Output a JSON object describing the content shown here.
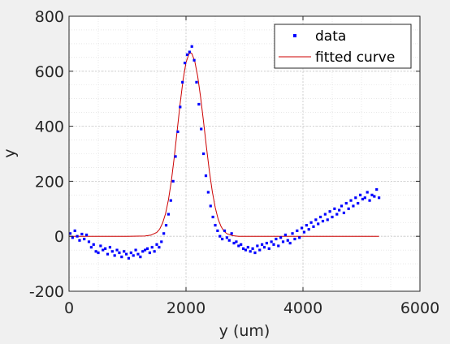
{
  "chart_data": {
    "type": "scatter",
    "xlabel": "y (um)",
    "ylabel": "y",
    "xlim": [
      0,
      6000
    ],
    "ylim": [
      -200,
      800
    ],
    "xticks": [
      0,
      2000,
      4000,
      6000
    ],
    "xtick_labels": [
      "0",
      "2000",
      "4000",
      "6000"
    ],
    "yticks": [
      -200,
      0,
      200,
      400,
      600,
      800
    ],
    "ytick_labels": [
      "-200",
      "0",
      "200",
      "400",
      "600",
      "800"
    ],
    "grid": true,
    "minor_grid": true,
    "legend_position": "top-right",
    "series": [
      {
        "name": "data",
        "kind": "markers",
        "color": "#0000ff",
        "x": [
          20,
          60,
          100,
          140,
          180,
          220,
          260,
          300,
          340,
          380,
          420,
          460,
          500,
          540,
          580,
          620,
          660,
          700,
          740,
          780,
          820,
          860,
          900,
          940,
          980,
          1020,
          1060,
          1100,
          1140,
          1180,
          1220,
          1260,
          1300,
          1340,
          1380,
          1420,
          1460,
          1500,
          1540,
          1580,
          1620,
          1660,
          1700,
          1740,
          1780,
          1820,
          1860,
          1900,
          1940,
          1980,
          2020,
          2060,
          2100,
          2140,
          2180,
          2220,
          2260,
          2300,
          2340,
          2380,
          2420,
          2460,
          2500,
          2540,
          2580,
          2620,
          2660,
          2700,
          2740,
          2780,
          2820,
          2860,
          2900,
          2940,
          2980,
          3020,
          3060,
          3100,
          3140,
          3180,
          3220,
          3260,
          3300,
          3340,
          3380,
          3420,
          3460,
          3500,
          3540,
          3580,
          3620,
          3660,
          3700,
          3740,
          3780,
          3820,
          3860,
          3900,
          3940,
          3980,
          4020,
          4060,
          4100,
          4140,
          4180,
          4220,
          4260,
          4300,
          4340,
          4380,
          4420,
          4460,
          4500,
          4540,
          4580,
          4620,
          4660,
          4700,
          4740,
          4780,
          4820,
          4860,
          4900,
          4940,
          4980,
          5020,
          5060,
          5100,
          5140,
          5180,
          5220,
          5260,
          5300
        ],
        "y": [
          10,
          -5,
          20,
          0,
          -15,
          8,
          -10,
          5,
          -20,
          -40,
          -30,
          -55,
          -60,
          -35,
          -50,
          -45,
          -65,
          -40,
          -55,
          -70,
          -50,
          -60,
          -75,
          -55,
          -65,
          -80,
          -60,
          -70,
          -50,
          -65,
          -75,
          -55,
          -50,
          -45,
          -60,
          -40,
          -55,
          -30,
          -40,
          -20,
          10,
          40,
          80,
          130,
          200,
          290,
          380,
          470,
          560,
          630,
          660,
          670,
          690,
          640,
          560,
          480,
          390,
          300,
          220,
          160,
          110,
          70,
          40,
          20,
          0,
          -10,
          20,
          -5,
          -15,
          10,
          -25,
          -20,
          -35,
          -30,
          -45,
          -50,
          -40,
          -55,
          -45,
          -60,
          -35,
          -50,
          -30,
          -40,
          -25,
          -45,
          -20,
          -30,
          -10,
          -35,
          -5,
          -20,
          5,
          -15,
          -25,
          10,
          -10,
          20,
          -5,
          30,
          15,
          40,
          25,
          50,
          35,
          60,
          45,
          70,
          55,
          80,
          60,
          90,
          70,
          100,
          80,
          95,
          110,
          85,
          120,
          100,
          130,
          110,
          140,
          120,
          150,
          135,
          140,
          160,
          130,
          150,
          145,
          170,
          140
        ]
      },
      {
        "name": "fitted curve",
        "kind": "line",
        "color": "#cc0000",
        "x": [
          0,
          500,
          1000,
          1300,
          1400,
          1500,
          1550,
          1600,
          1650,
          1700,
          1750,
          1800,
          1850,
          1900,
          1950,
          2000,
          2050,
          2080,
          2100,
          2150,
          2200,
          2250,
          2300,
          2350,
          2400,
          2450,
          2500,
          2550,
          2600,
          2650,
          2700,
          2800,
          2900,
          3000,
          3500,
          4000,
          4500,
          5000,
          5300
        ],
        "y": [
          0,
          0,
          0,
          1,
          4,
          14,
          26,
          48,
          82,
          133,
          202,
          289,
          386,
          483,
          569,
          632,
          663,
          667,
          664,
          636,
          581,
          505,
          416,
          323,
          236,
          162,
          104,
          62,
          35,
          18,
          9,
          2,
          0,
          0,
          0,
          0,
          0,
          0,
          0
        ]
      }
    ]
  }
}
